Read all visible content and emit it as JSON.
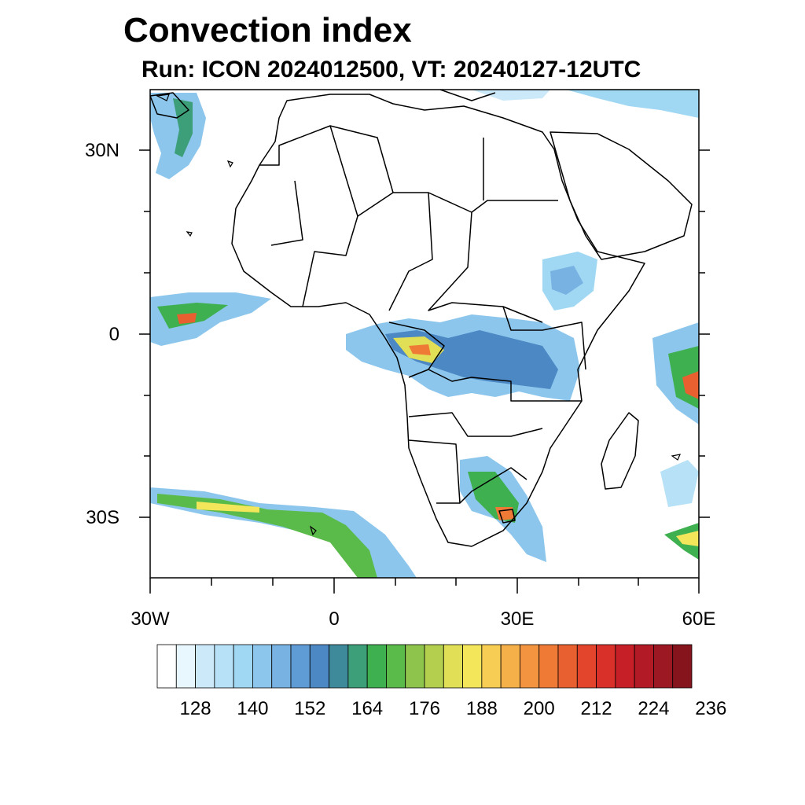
{
  "title": "Convection index",
  "subtitle": "Run: ICON 2024012500,  VT: 20240127-12UTC",
  "map": {
    "lon_range": [
      -30,
      60
    ],
    "lat_range": [
      -40,
      40
    ],
    "lat_labels": [
      "30N",
      "0",
      "30S"
    ],
    "lon_labels": [
      "30W",
      "0",
      "30E",
      "60E"
    ]
  },
  "colorbar": {
    "labels": [
      "128",
      "140",
      "152",
      "164",
      "176",
      "188",
      "200",
      "212",
      "224",
      "236"
    ],
    "colors": [
      "#ffffff",
      "#e8f6fd",
      "#cbe9f8",
      "#b6e1f6",
      "#a0d8f4",
      "#8cc6ec",
      "#78b2e2",
      "#5f9bd4",
      "#4b88c4",
      "#3f8a9a",
      "#3d9e7a",
      "#3eb050",
      "#5bbb4a",
      "#8ec44c",
      "#b3cf4d",
      "#e0df55",
      "#f4e65a",
      "#f8cd54",
      "#f6b04a",
      "#f39540",
      "#ef7a36",
      "#e8602f",
      "#e2452c",
      "#d93029",
      "#c71f27",
      "#b21a25",
      "#9c1822",
      "#86141d"
    ]
  }
}
